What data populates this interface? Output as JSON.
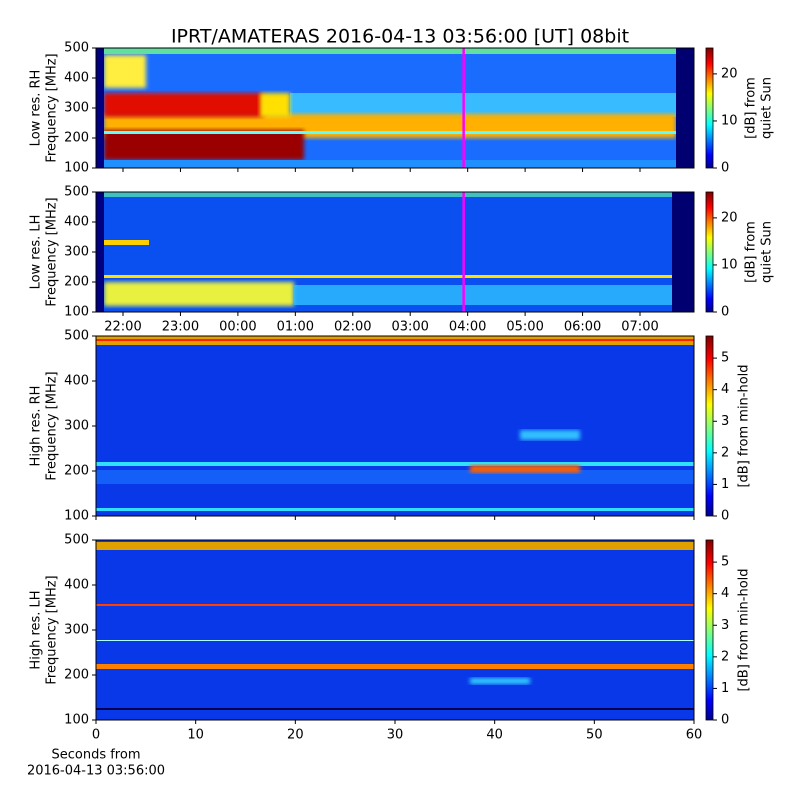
{
  "chart_data": [
    {
      "type": "heatmap",
      "title": "IPRT/AMATERAS 2016-04-13 03:56:00 [UT]   08bit",
      "ylabel": [
        "Low res. RH",
        "Frequency [MHz]"
      ],
      "ylim": [
        100,
        500
      ],
      "yticks": [
        100,
        200,
        300,
        400,
        500
      ],
      "xlim": [
        21.53,
        31.94
      ],
      "xticks": [
        22,
        23,
        24,
        25,
        26,
        27,
        28,
        29,
        30,
        31
      ],
      "xtick_labels": false,
      "marker_x": 27.93,
      "marker_color": "#ff00ff",
      "clim": [
        0,
        25.5
      ],
      "cticks": [
        0,
        10,
        20
      ],
      "cbar_label": [
        "[dB] from",
        "quiet Sun"
      ],
      "colormap": "jet"
    },
    {
      "type": "heatmap",
      "ylabel": [
        "Low res. LH",
        "Frequency [MHz]"
      ],
      "ylim": [
        100,
        500
      ],
      "yticks": [
        100,
        200,
        300,
        400,
        500
      ],
      "xlim": [
        21.53,
        31.94
      ],
      "xticks": [
        {
          "value": 22,
          "label": "22:00"
        },
        {
          "value": 23,
          "label": "23:00"
        },
        {
          "value": 24,
          "label": "00:00"
        },
        {
          "value": 25,
          "label": "01:00"
        },
        {
          "value": 26,
          "label": "02:00"
        },
        {
          "value": 27,
          "label": "03:00"
        },
        {
          "value": 28,
          "label": "04:00"
        },
        {
          "value": 29,
          "label": "05:00"
        },
        {
          "value": 30,
          "label": "06:00"
        },
        {
          "value": 31,
          "label": "07:00"
        }
      ],
      "xtick_labels": true,
      "marker_x": 27.93,
      "marker_color": "#ff00ff",
      "clim": [
        0,
        25.5
      ],
      "cticks": [
        0,
        10,
        20
      ],
      "cbar_label": [
        "[dB] from",
        "quiet Sun"
      ],
      "colormap": "jet"
    },
    {
      "type": "heatmap",
      "ylabel": [
        "High res. RH",
        "Frequency [MHz]"
      ],
      "ylim": [
        100,
        500
      ],
      "yticks": [
        100,
        200,
        300,
        400,
        500
      ],
      "xlim": [
        0,
        60
      ],
      "xticks": [
        0,
        10,
        20,
        30,
        40,
        50,
        60
      ],
      "xtick_labels": false,
      "clim": [
        0,
        5.7
      ],
      "cticks": [
        0,
        1,
        2,
        3,
        4,
        5
      ],
      "cbar_label": [
        "[dB] from min-hold"
      ],
      "colormap": "jet"
    },
    {
      "type": "heatmap",
      "ylabel": [
        "High res. LH",
        "Frequency [MHz]"
      ],
      "ylim": [
        100,
        500
      ],
      "yticks": [
        100,
        200,
        300,
        400,
        500
      ],
      "xlim": [
        0,
        60
      ],
      "xticks": [
        0,
        10,
        20,
        30,
        40,
        50,
        60
      ],
      "xtick_labels": true,
      "xlabel": [
        "Seconds from",
        "2016-04-13 03:56:00"
      ],
      "clim": [
        0,
        5.7
      ],
      "cticks": [
        0,
        1,
        2,
        3,
        4,
        5
      ],
      "cbar_label": [
        "[dB] from min-hold"
      ],
      "colormap": "jet"
    }
  ]
}
